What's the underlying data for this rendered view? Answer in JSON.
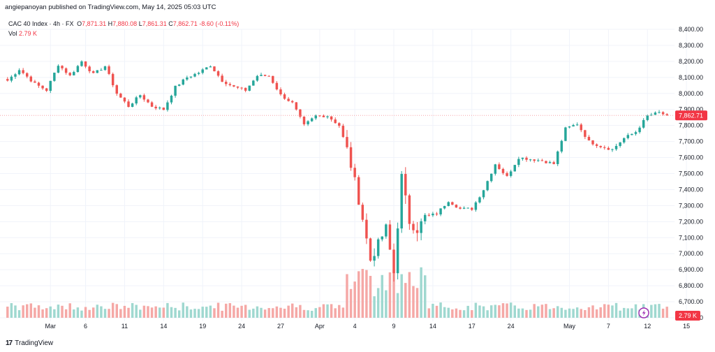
{
  "header": {
    "publisher_line": "angiepanoyan published on TradingView.com, May 14, 2025 05:03 UTC"
  },
  "legend": {
    "symbol": "CAC 40 Index · 4h · FX",
    "open_label": "O",
    "open_value": "7,871.31",
    "high_label": "H",
    "high_value": "7,880.08",
    "low_label": "L",
    "low_value": "7,861.31",
    "close_label": "C",
    "close_value": "7,862.71",
    "change": "-8.60 (-0.11%)",
    "volume_label": "Vol",
    "volume_value": "2.79 K"
  },
  "brand": {
    "logo_text": "17",
    "name": "TradingView"
  },
  "colors": {
    "up": "#26a69a",
    "down": "#ef5350",
    "vol_up": "#9fd8d0",
    "vol_down": "#f5a8a6",
    "price_tag": "#f23645",
    "grid": "#f0f3fa",
    "price_line": "#f7a2a8"
  },
  "chart_data": {
    "type": "candlestick",
    "title": "CAC 40 Index · 4h · FX",
    "y_ticks": [
      "8,400.00",
      "8,300.00",
      "8,200.00",
      "8,100.00",
      "8,000.00",
      "7,900.00",
      "7,800.00",
      "7,700.00",
      "7,600.00",
      "7,500.00",
      "7,400.00",
      "7,300.00",
      "7,200.00",
      "7,100.00",
      "7,000.00",
      "6,900.00",
      "6,800.00",
      "6,700.00",
      "6,600.00"
    ],
    "y_tick_values": [
      8400,
      8300,
      8200,
      8100,
      8000,
      7900,
      7800,
      7700,
      7600,
      7500,
      7400,
      7300,
      7200,
      7100,
      7000,
      6900,
      6800,
      6700,
      6600
    ],
    "ylim": [
      6600,
      8400
    ],
    "x_ticks": [
      {
        "label": "Mar",
        "index": 11
      },
      {
        "label": "6",
        "index": 20
      },
      {
        "label": "11",
        "index": 30
      },
      {
        "label": "14",
        "index": 40
      },
      {
        "label": "19",
        "index": 50
      },
      {
        "label": "24",
        "index": 60
      },
      {
        "label": "27",
        "index": 70
      },
      {
        "label": "Apr",
        "index": 80
      },
      {
        "label": "4",
        "index": 89
      },
      {
        "label": "9",
        "index": 99
      },
      {
        "label": "14",
        "index": 109
      },
      {
        "label": "17",
        "index": 119
      },
      {
        "label": "24",
        "index": 129
      },
      {
        "label": "May",
        "index": 144
      },
      {
        "label": "7",
        "index": 154
      },
      {
        "label": "12",
        "index": 164
      },
      {
        "label": "15",
        "index": 174
      }
    ],
    "last_price": 7862.71,
    "last_price_label": "7,862.71",
    "last_volume_label": "2.79 K",
    "anchor_closes": [
      {
        "i": 0,
        "c": 8080
      },
      {
        "i": 3,
        "c": 8150
      },
      {
        "i": 7,
        "c": 8060
      },
      {
        "i": 10,
        "c": 8020
      },
      {
        "i": 13,
        "c": 8180
      },
      {
        "i": 16,
        "c": 8110
      },
      {
        "i": 19,
        "c": 8200
      },
      {
        "i": 22,
        "c": 8120
      },
      {
        "i": 25,
        "c": 8170
      },
      {
        "i": 28,
        "c": 8000
      },
      {
        "i": 31,
        "c": 7920
      },
      {
        "i": 34,
        "c": 7990
      },
      {
        "i": 37,
        "c": 7920
      },
      {
        "i": 40,
        "c": 7900
      },
      {
        "i": 43,
        "c": 8040
      },
      {
        "i": 46,
        "c": 8100
      },
      {
        "i": 49,
        "c": 8130
      },
      {
        "i": 52,
        "c": 8175
      },
      {
        "i": 55,
        "c": 8080
      },
      {
        "i": 58,
        "c": 8040
      },
      {
        "i": 61,
        "c": 8020
      },
      {
        "i": 64,
        "c": 8110
      },
      {
        "i": 67,
        "c": 8110
      },
      {
        "i": 70,
        "c": 7990
      },
      {
        "i": 73,
        "c": 7940
      },
      {
        "i": 76,
        "c": 7800
      },
      {
        "i": 79,
        "c": 7860
      },
      {
        "i": 82,
        "c": 7860
      },
      {
        "i": 85,
        "c": 7800
      },
      {
        "i": 87,
        "c": 7650
      },
      {
        "i": 89,
        "c": 7450
      },
      {
        "i": 91,
        "c": 7220
      },
      {
        "i": 93,
        "c": 6960
      },
      {
        "i": 95,
        "c": 7060
      },
      {
        "i": 97,
        "c": 7160
      },
      {
        "i": 99,
        "c": 6880
      },
      {
        "i": 101,
        "c": 7480
      },
      {
        "i": 103,
        "c": 7200
      },
      {
        "i": 105,
        "c": 7150
      },
      {
        "i": 107,
        "c": 7230
      },
      {
        "i": 110,
        "c": 7250
      },
      {
        "i": 113,
        "c": 7330
      },
      {
        "i": 116,
        "c": 7280
      },
      {
        "i": 119,
        "c": 7280
      },
      {
        "i": 122,
        "c": 7400
      },
      {
        "i": 125,
        "c": 7560
      },
      {
        "i": 128,
        "c": 7480
      },
      {
        "i": 131,
        "c": 7600
      },
      {
        "i": 134,
        "c": 7590
      },
      {
        "i": 137,
        "c": 7580
      },
      {
        "i": 140,
        "c": 7560
      },
      {
        "i": 143,
        "c": 7780
      },
      {
        "i": 146,
        "c": 7810
      },
      {
        "i": 149,
        "c": 7700
      },
      {
        "i": 152,
        "c": 7670
      },
      {
        "i": 155,
        "c": 7650
      },
      {
        "i": 158,
        "c": 7720
      },
      {
        "i": 161,
        "c": 7760
      },
      {
        "i": 164,
        "c": 7860
      },
      {
        "i": 167,
        "c": 7880
      },
      {
        "i": 169,
        "c": 7862.71
      }
    ],
    "candle_count": 170
  }
}
